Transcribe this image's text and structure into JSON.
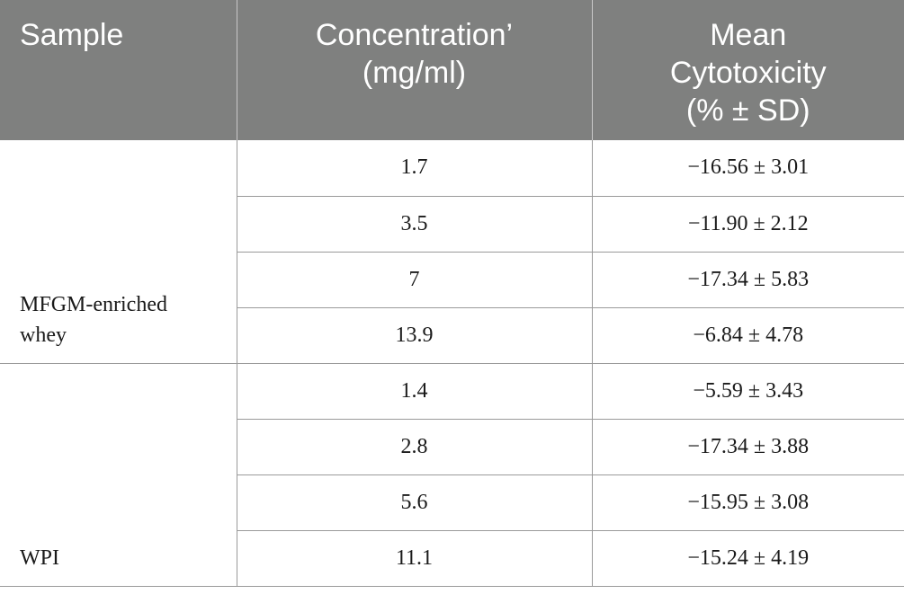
{
  "table": {
    "headers": {
      "sample": "Sample",
      "concentration_line1": "Concentration’",
      "concentration_line2": "(mg/ml)",
      "cytotoxicity_line1": "Mean",
      "cytotoxicity_line2": "Cytotoxicity",
      "cytotoxicity_line3": "(% ± SD)"
    },
    "groups": [
      {
        "sample_line1": "MFGM-enriched",
        "sample_line2": "whey",
        "rows": [
          {
            "concentration": "1.7",
            "cytotoxicity": "−16.56 ± 3.01"
          },
          {
            "concentration": "3.5",
            "cytotoxicity": "−11.90 ± 2.12"
          },
          {
            "concentration": "7",
            "cytotoxicity": "−17.34 ± 5.83"
          },
          {
            "concentration": "13.9",
            "cytotoxicity": "−6.84 ± 4.78"
          }
        ]
      },
      {
        "sample_line1": "WPI",
        "rows": [
          {
            "concentration": "1.4",
            "cytotoxicity": "−5.59 ± 3.43"
          },
          {
            "concentration": "2.8",
            "cytotoxicity": "−17.34 ± 3.88"
          },
          {
            "concentration": "5.6",
            "cytotoxicity": "−15.95 ± 3.08"
          },
          {
            "concentration": "11.1",
            "cytotoxicity": "−15.24 ± 4.19"
          }
        ]
      }
    ],
    "colors": {
      "header_bg": "#7f807f",
      "header_text": "#ffffff",
      "rule": "#9a9a9a"
    }
  }
}
